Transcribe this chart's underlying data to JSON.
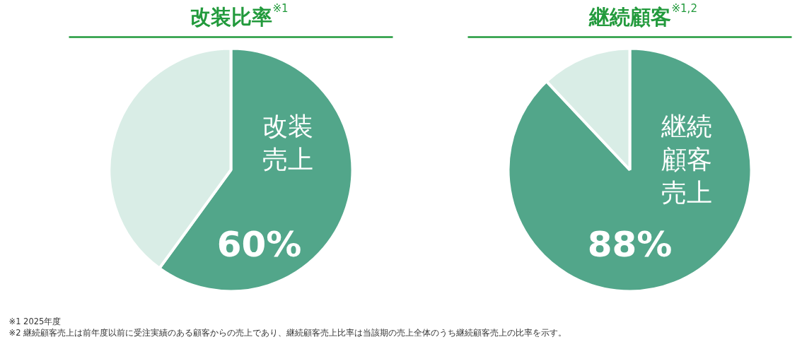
{
  "chart_data": [
    {
      "type": "pie",
      "title": "改装比率$^{※1}$",
      "categories": [
        "改装売上",
        null
      ],
      "values": [
        60,
        40
      ],
      "colors": [
        "#52a68a",
        "#d9ede6"
      ],
      "value_labels": [
        "60%",
        null
      ],
      "annotations": [
        "※1 2025年度"
      ]
    },
    {
      "type": "pie",
      "title": "継続顧客$^{※1,2}$",
      "categories": [
        "継続顧客売上",
        null
      ],
      "values": [
        88,
        12
      ],
      "colors": [
        "#52a68a",
        "#d9ede6"
      ],
      "value_labels": [
        "88%",
        null
      ],
      "annotations": [
        "※2 継続顧客売上は前年度以前に受注実績のある顧客からの売上であり、継続顧客売上比率は当該期の売上全体のうち継続顧客売上の比率を示す。"
      ]
    }
  ]
}
